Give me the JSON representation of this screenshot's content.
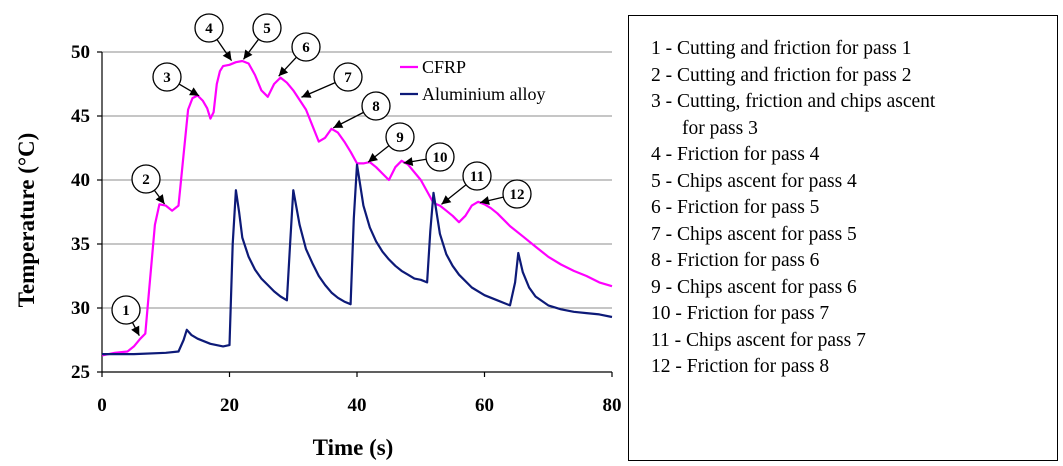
{
  "chart_data": {
    "type": "line",
    "xlabel": "Time (s)",
    "ylabel": "Temperature (°C)",
    "xlim": [
      0,
      80
    ],
    "ylim": [
      25,
      50
    ],
    "xticks": [
      0,
      20,
      40,
      60,
      80
    ],
    "yticks": [
      25,
      30,
      35,
      40,
      45,
      50
    ],
    "grid": "horizontal",
    "legend_position": "top-right inside plot",
    "series": [
      {
        "name": "CFRP",
        "color": "#ff00ff",
        "x": [
          0,
          2,
          4,
          5,
          6,
          6.8,
          7.5,
          8.3,
          9,
          10,
          11,
          12,
          12.8,
          13.5,
          14.2,
          15,
          15.8,
          16.5,
          17,
          17.5,
          18,
          18.5,
          19,
          20,
          21,
          22,
          23,
          24,
          25,
          26,
          27,
          28,
          29,
          30,
          32,
          34,
          35,
          36,
          37,
          38,
          39,
          40,
          41,
          42,
          43,
          44,
          45,
          46,
          47,
          48,
          50,
          52,
          53,
          54,
          55,
          56,
          57,
          58,
          59,
          60,
          61,
          62,
          64,
          66,
          68,
          70,
          72,
          74,
          76,
          78,
          80
        ],
        "y": [
          26.3,
          26.5,
          26.6,
          27,
          27.6,
          28,
          32,
          36.5,
          38.1,
          38.0,
          37.6,
          38.0,
          42,
          45.5,
          46.4,
          46.6,
          46.2,
          45.6,
          44.8,
          45.3,
          47.5,
          48.5,
          48.9,
          49.0,
          49.2,
          49.3,
          49.1,
          48.2,
          47.0,
          46.5,
          47.5,
          48.0,
          47.6,
          47.0,
          45.5,
          43.0,
          43.3,
          44.0,
          43.7,
          43.0,
          42.2,
          41.3,
          41.3,
          41.4,
          41.0,
          40.5,
          40.0,
          41.0,
          41.5,
          41.2,
          40.0,
          38.2,
          38.0,
          37.6,
          37.2,
          36.7,
          37.2,
          38.0,
          38.3,
          38.1,
          37.8,
          37.4,
          36.4,
          35.6,
          34.8,
          34.0,
          33.4,
          32.9,
          32.5,
          32.0,
          31.7
        ]
      },
      {
        "name": "Aluminium alloy",
        "color": "#0d1a78",
        "x": [
          0,
          5,
          10,
          12,
          12.8,
          13.3,
          14,
          15,
          17,
          19,
          20,
          20.5,
          21,
          21.5,
          22,
          23,
          24,
          25,
          26,
          27,
          28,
          29,
          29.5,
          30,
          31,
          32,
          33,
          34,
          35,
          36,
          37,
          38,
          39,
          39.5,
          40,
          41,
          42,
          43,
          44,
          45,
          46,
          47,
          48,
          49,
          50,
          51,
          51.5,
          52,
          53,
          54,
          55,
          56,
          58,
          60,
          62,
          64,
          64.8,
          65.3,
          66,
          67,
          68,
          70,
          72,
          74,
          76,
          78,
          80
        ],
        "y": [
          26.4,
          26.4,
          26.5,
          26.6,
          27.5,
          28.3,
          27.9,
          27.6,
          27.2,
          27.0,
          27.1,
          35,
          39.2,
          37.5,
          35.5,
          34.0,
          33.0,
          32.3,
          31.8,
          31.3,
          30.9,
          30.6,
          35,
          39.2,
          36.5,
          34.6,
          33.5,
          32.5,
          31.8,
          31.2,
          30.8,
          30.5,
          30.3,
          37,
          41.2,
          38.0,
          36.3,
          35.2,
          34.4,
          33.8,
          33.3,
          32.9,
          32.6,
          32.3,
          32.2,
          32.0,
          36,
          39.0,
          35.8,
          34.2,
          33.3,
          32.6,
          31.6,
          31.0,
          30.6,
          30.2,
          32,
          34.3,
          32.8,
          31.6,
          30.9,
          30.2,
          29.9,
          29.7,
          29.6,
          29.5,
          29.3
        ]
      }
    ],
    "annotations": [
      {
        "label": "1",
        "point": [
          6,
          27.7
        ]
      },
      {
        "label": "2",
        "point": [
          10,
          38.0
        ]
      },
      {
        "label": "3",
        "point": [
          15.5,
          46.5
        ]
      },
      {
        "label": "4",
        "point": [
          20.5,
          49.2
        ]
      },
      {
        "label": "5",
        "point": [
          22,
          49.3
        ]
      },
      {
        "label": "6",
        "point": [
          27.5,
          48.0
        ]
      },
      {
        "label": "7",
        "point": [
          31,
          46.4
        ]
      },
      {
        "label": "8",
        "point": [
          36,
          44.0
        ]
      },
      {
        "label": "9",
        "point": [
          41.5,
          41.3
        ]
      },
      {
        "label": "10",
        "point": [
          47,
          41.3
        ]
      },
      {
        "label": "11",
        "point": [
          53,
          38.0
        ]
      },
      {
        "label": "12",
        "point": [
          59,
          38.2
        ]
      }
    ]
  },
  "notes": [
    {
      "text": "1 - Cutting and friction for pass 1"
    },
    {
      "text": "2 - Cutting and friction for pass 2"
    },
    {
      "text": "3 - Cutting, friction and chips ascent",
      "continuation": "for pass 3"
    },
    {
      "text": "4 - Friction for pass 4"
    },
    {
      "text": "5 - Chips ascent for pass 4"
    },
    {
      "text": "6 - Friction for pass 5"
    },
    {
      "text": "7 - Chips ascent for pass 5"
    },
    {
      "text": "8 - Friction for pass 6"
    },
    {
      "text": "9 - Chips ascent for pass 6"
    },
    {
      "text": "10 - Friction for pass 7"
    },
    {
      "text": "11 - Chips ascent for pass 7"
    },
    {
      "text": "12 - Friction for pass 8"
    }
  ]
}
